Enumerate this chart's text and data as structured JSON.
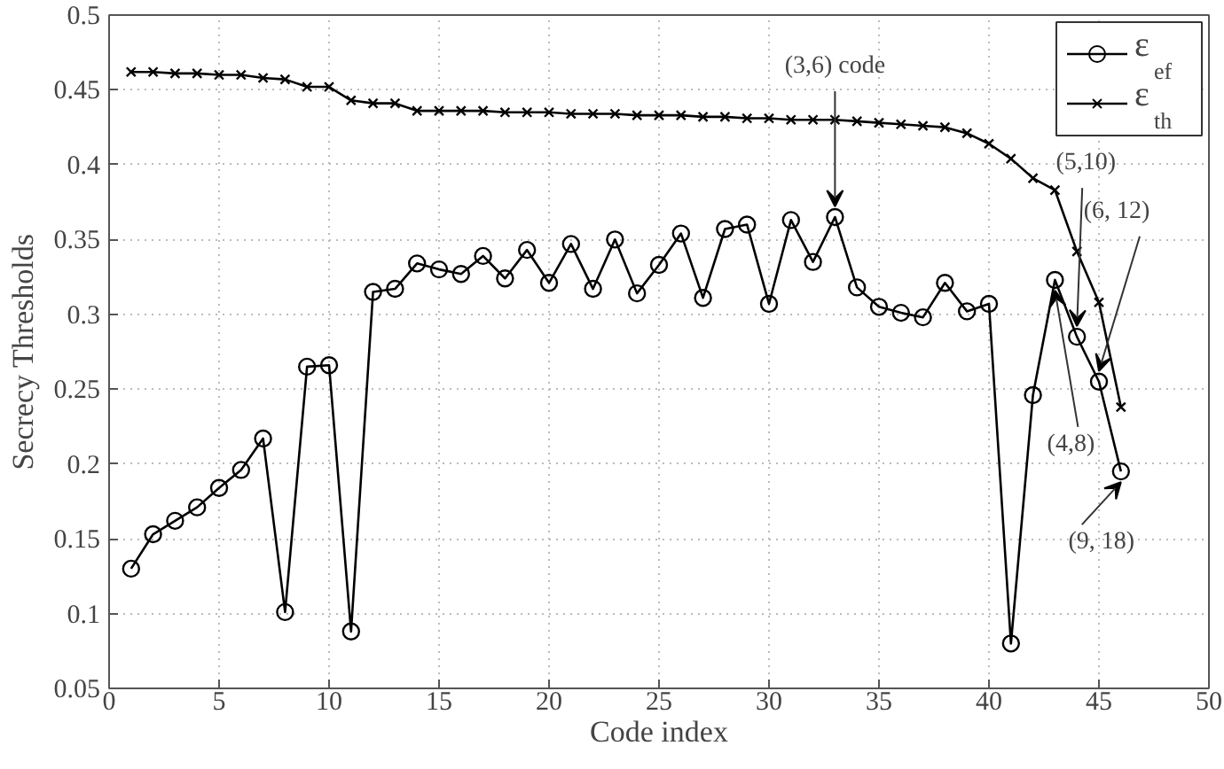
{
  "chart_data": {
    "type": "line",
    "xlabel": "Code index",
    "ylabel": "Secrecy Thresholds",
    "x": [
      1,
      2,
      3,
      4,
      5,
      6,
      7,
      8,
      9,
      10,
      11,
      12,
      13,
      14,
      15,
      16,
      17,
      18,
      19,
      20,
      21,
      22,
      23,
      24,
      25,
      26,
      27,
      28,
      29,
      30,
      31,
      32,
      33,
      34,
      35,
      36,
      37,
      38,
      39,
      40,
      41,
      42,
      43,
      44,
      45,
      46
    ],
    "series": [
      {
        "name": "ε$_{ef}$",
        "color": "#000000",
        "marker": "circle",
        "values": [
          0.13,
          0.153,
          0.162,
          0.171,
          0.184,
          0.196,
          0.217,
          0.101,
          0.265,
          0.266,
          0.088,
          0.315,
          0.317,
          0.334,
          0.33,
          0.327,
          0.339,
          0.324,
          0.343,
          0.321,
          0.347,
          0.317,
          0.35,
          0.314,
          0.333,
          0.354,
          0.311,
          0.357,
          0.36,
          0.307,
          0.363,
          0.335,
          0.365,
          0.318,
          0.305,
          0.301,
          0.298,
          0.321,
          0.302,
          0.307,
          0.08,
          0.246,
          0.323,
          0.285,
          0.255,
          0.195
        ]
      },
      {
        "name": "ε$_{th}$",
        "color": "#000000",
        "marker": "cross",
        "values": [
          0.462,
          0.462,
          0.461,
          0.461,
          0.46,
          0.46,
          0.458,
          0.457,
          0.452,
          0.452,
          0.443,
          0.441,
          0.441,
          0.436,
          0.436,
          0.436,
          0.436,
          0.435,
          0.435,
          0.435,
          0.434,
          0.434,
          0.434,
          0.433,
          0.433,
          0.433,
          0.432,
          0.432,
          0.431,
          0.431,
          0.43,
          0.43,
          0.43,
          0.429,
          0.428,
          0.427,
          0.426,
          0.425,
          0.421,
          0.414,
          0.404,
          0.391,
          0.383,
          0.342,
          0.308,
          0.238
        ]
      }
    ],
    "xlim": [
      0,
      50
    ],
    "xticks": [
      0,
      5,
      10,
      15,
      20,
      25,
      30,
      35,
      40,
      45,
      50
    ],
    "ylim": [
      0.05,
      0.5
    ],
    "yticks": [
      0.05,
      0.1,
      0.15,
      0.2,
      0.25,
      0.3,
      0.35,
      0.4,
      0.45,
      0.5
    ],
    "grid": true,
    "legend": "top right",
    "line_style": "solid",
    "annotations": [
      {
        "text": "(3,6) code",
        "x": 33,
        "y": 0.365
      },
      {
        "text": "(5,10)",
        "x": 44,
        "y": 0.285
      },
      {
        "text": "(6, 12)",
        "x": 45,
        "y": 0.255
      },
      {
        "text": "(4,8)",
        "x": 43,
        "y": 0.323
      },
      {
        "text": "(9, 18)",
        "x": 46,
        "y": 0.195
      }
    ]
  }
}
